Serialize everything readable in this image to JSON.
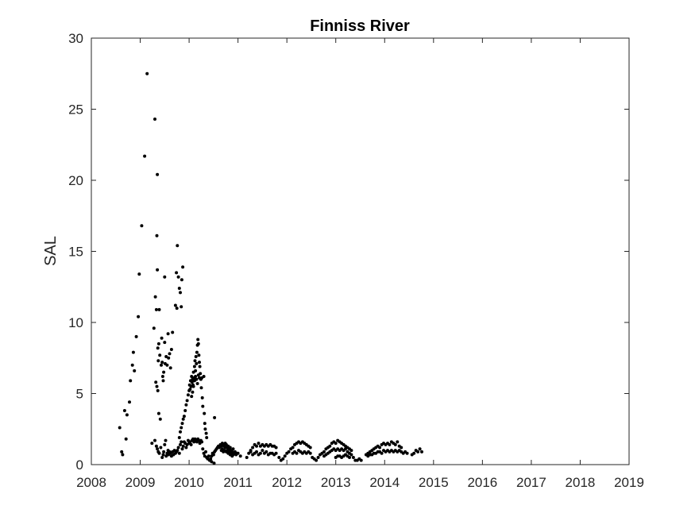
{
  "chart_data": {
    "type": "scatter",
    "title": "Finniss River",
    "xlabel": "",
    "ylabel": "SAL",
    "xlim": [
      2008,
      2019
    ],
    "ylim": [
      0,
      30
    ],
    "xticks": [
      "2008",
      "2009",
      "2010",
      "2011",
      "2012",
      "2013",
      "2014",
      "2015",
      "2016",
      "2017",
      "2018",
      "2019"
    ],
    "yticks": [
      "0",
      "5",
      "10",
      "15",
      "20",
      "25",
      "30"
    ],
    "grid": false,
    "legend": "none",
    "marker_color": "#000000",
    "points": [
      [
        2008.58,
        2.6
      ],
      [
        2008.62,
        0.9
      ],
      [
        2008.64,
        0.7
      ],
      [
        2008.68,
        3.8
      ],
      [
        2008.71,
        1.8
      ],
      [
        2008.73,
        3.5
      ],
      [
        2008.78,
        4.4
      ],
      [
        2008.8,
        5.9
      ],
      [
        2008.84,
        7.0
      ],
      [
        2008.86,
        7.9
      ],
      [
        2008.88,
        6.6
      ],
      [
        2008.92,
        9.0
      ],
      [
        2008.96,
        10.4
      ],
      [
        2008.98,
        13.4
      ],
      [
        2009.03,
        16.8
      ],
      [
        2009.09,
        21.7
      ],
      [
        2009.14,
        27.5
      ],
      [
        2009.24,
        1.5
      ],
      [
        2009.28,
        9.6
      ],
      [
        2009.3,
        24.3
      ],
      [
        2009.31,
        11.8
      ],
      [
        2009.33,
        10.9
      ],
      [
        2009.34,
        16.1
      ],
      [
        2009.35,
        20.4
      ],
      [
        2009.35,
        13.7
      ],
      [
        2009.36,
        8.2
      ],
      [
        2009.37,
        7.3
      ],
      [
        2009.38,
        8.5
      ],
      [
        2009.39,
        10.9
      ],
      [
        2009.4,
        7.7
      ],
      [
        2009.32,
        5.8
      ],
      [
        2009.34,
        5.5
      ],
      [
        2009.36,
        5.2
      ],
      [
        2009.38,
        3.6
      ],
      [
        2009.41,
        3.2
      ],
      [
        2009.3,
        1.7
      ],
      [
        2009.33,
        1.3
      ],
      [
        2009.35,
        1.1
      ],
      [
        2009.37,
        0.9
      ],
      [
        2009.39,
        0.8
      ],
      [
        2009.42,
        1.2
      ],
      [
        2009.43,
        7.0
      ],
      [
        2009.44,
        8.9
      ],
      [
        2009.45,
        7.2
      ],
      [
        2009.46,
        6.2
      ],
      [
        2009.47,
        5.9
      ],
      [
        2009.48,
        6.5
      ],
      [
        2009.5,
        13.2
      ],
      [
        2009.5,
        8.6
      ],
      [
        2009.51,
        7.1
      ],
      [
        2009.53,
        7.6
      ],
      [
        2009.55,
        7.0
      ],
      [
        2009.57,
        9.2
      ],
      [
        2009.58,
        7.5
      ],
      [
        2009.6,
        7.8
      ],
      [
        2009.62,
        6.8
      ],
      [
        2009.64,
        8.1
      ],
      [
        2009.66,
        9.3
      ],
      [
        2009.45,
        0.5
      ],
      [
        2009.47,
        0.7
      ],
      [
        2009.48,
        0.9
      ],
      [
        2009.5,
        1.4
      ],
      [
        2009.52,
        1.7
      ],
      [
        2009.53,
        0.6
      ],
      [
        2009.55,
        0.8
      ],
      [
        2009.57,
        1.0
      ],
      [
        2009.58,
        0.7
      ],
      [
        2009.6,
        0.9
      ],
      [
        2009.62,
        0.8
      ],
      [
        2009.64,
        0.6
      ],
      [
        2009.66,
        0.9
      ],
      [
        2009.68,
        0.7
      ],
      [
        2009.7,
        1.0
      ],
      [
        2009.72,
        0.8
      ],
      [
        2009.72,
        11.2
      ],
      [
        2009.74,
        13.5
      ],
      [
        2009.75,
        11.0
      ],
      [
        2009.76,
        15.4
      ],
      [
        2009.78,
        13.2
      ],
      [
        2009.8,
        12.4
      ],
      [
        2009.82,
        12.1
      ],
      [
        2009.84,
        11.1
      ],
      [
        2009.85,
        13.0
      ],
      [
        2009.87,
        13.9
      ],
      [
        2009.74,
        0.9
      ],
      [
        2009.76,
        1.0
      ],
      [
        2009.78,
        1.2
      ],
      [
        2009.8,
        0.8
      ],
      [
        2009.82,
        1.4
      ],
      [
        2009.84,
        1.6
      ],
      [
        2009.86,
        1.1
      ],
      [
        2009.88,
        1.3
      ],
      [
        2009.9,
        1.6
      ],
      [
        2009.92,
        1.5
      ],
      [
        2009.94,
        1.2
      ],
      [
        2009.96,
        1.4
      ],
      [
        2009.98,
        1.7
      ],
      [
        2010.0,
        1.5
      ],
      [
        2010.02,
        1.6
      ],
      [
        2010.04,
        1.4
      ],
      [
        2010.06,
        1.7
      ],
      [
        2010.08,
        1.8
      ],
      [
        2010.1,
        1.6
      ],
      [
        2010.12,
        1.8
      ],
      [
        2010.14,
        1.7
      ],
      [
        2010.16,
        1.6
      ],
      [
        2010.18,
        1.8
      ],
      [
        2010.2,
        1.7
      ],
      [
        2010.22,
        1.5
      ],
      [
        2010.24,
        1.7
      ],
      [
        2010.26,
        1.6
      ],
      [
        2009.8,
        1.9
      ],
      [
        2009.82,
        2.3
      ],
      [
        2009.84,
        2.6
      ],
      [
        2009.86,
        2.9
      ],
      [
        2009.88,
        3.2
      ],
      [
        2009.9,
        3.4
      ],
      [
        2009.92,
        3.8
      ],
      [
        2009.94,
        4.2
      ],
      [
        2009.96,
        4.5
      ],
      [
        2009.98,
        4.9
      ],
      [
        2010.0,
        5.2
      ],
      [
        2010.01,
        5.6
      ],
      [
        2010.02,
        5.3
      ],
      [
        2010.03,
        5.9
      ],
      [
        2010.04,
        5.5
      ],
      [
        2010.05,
        6.2
      ],
      [
        2010.06,
        5.8
      ],
      [
        2010.07,
        6.0
      ],
      [
        2010.08,
        5.6
      ],
      [
        2010.09,
        6.5
      ],
      [
        2010.1,
        6.1
      ],
      [
        2010.11,
        6.9
      ],
      [
        2010.12,
        7.3
      ],
      [
        2010.13,
        6.6
      ],
      [
        2010.14,
        7.6
      ],
      [
        2010.15,
        7.1
      ],
      [
        2010.16,
        7.9
      ],
      [
        2010.17,
        8.4
      ],
      [
        2010.18,
        8.8
      ],
      [
        2010.19,
        8.5
      ],
      [
        2010.2,
        7.7
      ],
      [
        2010.21,
        7.2
      ],
      [
        2010.22,
        6.9
      ],
      [
        2010.23,
        6.4
      ],
      [
        2010.24,
        6.0
      ],
      [
        2010.25,
        5.4
      ],
      [
        2010.26,
        6.1
      ],
      [
        2010.27,
        4.7
      ],
      [
        2010.28,
        4.1
      ],
      [
        2010.3,
        6.2
      ],
      [
        2010.31,
        3.6
      ],
      [
        2010.32,
        2.9
      ],
      [
        2010.33,
        2.5
      ],
      [
        2010.35,
        2.2
      ],
      [
        2010.36,
        1.9
      ],
      [
        2010.05,
        4.8
      ],
      [
        2010.07,
        5.1
      ],
      [
        2010.09,
        5.5
      ],
      [
        2010.11,
        5.9
      ],
      [
        2010.13,
        6.2
      ],
      [
        2010.15,
        6.0
      ],
      [
        2010.17,
        5.7
      ],
      [
        2010.19,
        6.3
      ],
      [
        2010.21,
        6.1
      ],
      [
        2010.28,
        1.1
      ],
      [
        2010.3,
        0.8
      ],
      [
        2010.32,
        0.6
      ],
      [
        2010.34,
        0.9
      ],
      [
        2010.36,
        0.5
      ],
      [
        2010.38,
        0.4
      ],
      [
        2010.4,
        0.6
      ],
      [
        2010.42,
        0.3
      ],
      [
        2010.44,
        0.4
      ],
      [
        2010.46,
        0.6
      ],
      [
        2010.48,
        0.8
      ],
      [
        2010.5,
        0.7
      ],
      [
        2010.52,
        0.9
      ],
      [
        2010.54,
        1.0
      ],
      [
        2010.56,
        1.1
      ],
      [
        2010.58,
        1.2
      ],
      [
        2010.6,
        1.3
      ],
      [
        2010.62,
        1.2
      ],
      [
        2010.64,
        1.4
      ],
      [
        2010.66,
        1.3
      ],
      [
        2010.68,
        1.5
      ],
      [
        2010.7,
        1.4
      ],
      [
        2010.72,
        1.3
      ],
      [
        2010.74,
        1.5
      ],
      [
        2010.76,
        1.4
      ],
      [
        2010.78,
        1.2
      ],
      [
        2010.8,
        1.3
      ],
      [
        2010.82,
        1.1
      ],
      [
        2010.84,
        1.2
      ],
      [
        2010.86,
        1.0
      ],
      [
        2010.88,
        0.9
      ],
      [
        2010.9,
        1.1
      ],
      [
        2010.92,
        0.8
      ],
      [
        2010.94,
        0.9
      ],
      [
        2010.96,
        0.7
      ],
      [
        2010.98,
        0.8
      ],
      [
        2010.46,
        0.2
      ],
      [
        2010.51,
        0.1
      ],
      [
        2010.52,
        3.3
      ],
      [
        2010.66,
        1.0
      ],
      [
        2010.68,
        1.1
      ],
      [
        2010.7,
        0.9
      ],
      [
        2010.72,
        1.0
      ],
      [
        2010.74,
        1.2
      ],
      [
        2010.76,
        0.9
      ],
      [
        2010.78,
        1.0
      ],
      [
        2010.8,
        0.8
      ],
      [
        2010.82,
        0.9
      ],
      [
        2010.84,
        0.7
      ],
      [
        2010.86,
        0.8
      ],
      [
        2010.88,
        0.6
      ],
      [
        2010.9,
        0.7
      ],
      [
        2011.0,
        0.8
      ],
      [
        2011.05,
        0.6
      ],
      [
        2011.18,
        0.5
      ],
      [
        2011.22,
        0.8
      ],
      [
        2011.26,
        1.0
      ],
      [
        2011.3,
        1.2
      ],
      [
        2011.34,
        1.4
      ],
      [
        2011.38,
        1.3
      ],
      [
        2011.42,
        1.5
      ],
      [
        2011.46,
        1.3
      ],
      [
        2011.5,
        1.4
      ],
      [
        2011.54,
        1.3
      ],
      [
        2011.58,
        1.4
      ],
      [
        2011.62,
        1.3
      ],
      [
        2011.66,
        1.4
      ],
      [
        2011.7,
        1.3
      ],
      [
        2011.74,
        1.3
      ],
      [
        2011.78,
        1.2
      ],
      [
        2011.26,
        0.9
      ],
      [
        2011.3,
        0.7
      ],
      [
        2011.34,
        0.8
      ],
      [
        2011.38,
        0.9
      ],
      [
        2011.42,
        0.7
      ],
      [
        2011.46,
        0.8
      ],
      [
        2011.5,
        1.0
      ],
      [
        2011.54,
        0.8
      ],
      [
        2011.58,
        0.9
      ],
      [
        2011.62,
        0.7
      ],
      [
        2011.66,
        0.8
      ],
      [
        2011.7,
        0.8
      ],
      [
        2011.74,
        0.7
      ],
      [
        2011.78,
        0.8
      ],
      [
        2011.84,
        0.5
      ],
      [
        2011.88,
        0.3
      ],
      [
        2011.92,
        0.4
      ],
      [
        2011.96,
        0.6
      ],
      [
        2012.0,
        0.8
      ],
      [
        2012.04,
        0.9
      ],
      [
        2012.08,
        1.1
      ],
      [
        2012.12,
        1.2
      ],
      [
        2012.16,
        1.4
      ],
      [
        2012.2,
        1.5
      ],
      [
        2012.24,
        1.6
      ],
      [
        2012.28,
        1.5
      ],
      [
        2012.32,
        1.6
      ],
      [
        2012.36,
        1.5
      ],
      [
        2012.4,
        1.4
      ],
      [
        2012.44,
        1.3
      ],
      [
        2012.48,
        1.2
      ],
      [
        2012.12,
        0.8
      ],
      [
        2012.16,
        0.9
      ],
      [
        2012.2,
        0.8
      ],
      [
        2012.24,
        1.0
      ],
      [
        2012.28,
        0.9
      ],
      [
        2012.32,
        0.8
      ],
      [
        2012.36,
        0.9
      ],
      [
        2012.4,
        0.8
      ],
      [
        2012.44,
        0.9
      ],
      [
        2012.48,
        0.8
      ],
      [
        2012.52,
        0.5
      ],
      [
        2012.56,
        0.4
      ],
      [
        2012.6,
        0.3
      ],
      [
        2012.64,
        0.5
      ],
      [
        2012.68,
        0.7
      ],
      [
        2012.72,
        0.8
      ],
      [
        2012.76,
        0.9
      ],
      [
        2012.8,
        1.1
      ],
      [
        2012.84,
        1.2
      ],
      [
        2012.88,
        1.3
      ],
      [
        2012.92,
        1.5
      ],
      [
        2012.96,
        1.6
      ],
      [
        2013.0,
        1.5
      ],
      [
        2013.04,
        1.7
      ],
      [
        2013.08,
        1.6
      ],
      [
        2013.12,
        1.5
      ],
      [
        2013.16,
        1.4
      ],
      [
        2013.2,
        1.3
      ],
      [
        2013.24,
        1.2
      ],
      [
        2013.28,
        1.1
      ],
      [
        2013.32,
        1.0
      ],
      [
        2012.76,
        0.6
      ],
      [
        2012.8,
        0.7
      ],
      [
        2012.84,
        0.8
      ],
      [
        2012.88,
        0.9
      ],
      [
        2012.92,
        1.0
      ],
      [
        2012.96,
        1.1
      ],
      [
        2013.0,
        1.0
      ],
      [
        2013.04,
        1.1
      ],
      [
        2013.08,
        1.0
      ],
      [
        2013.12,
        1.1
      ],
      [
        2013.16,
        1.0
      ],
      [
        2013.2,
        1.1
      ],
      [
        2013.24,
        0.9
      ],
      [
        2013.28,
        0.8
      ],
      [
        2013.32,
        0.7
      ],
      [
        2013.0,
        0.5
      ],
      [
        2013.04,
        0.6
      ],
      [
        2013.08,
        0.6
      ],
      [
        2013.12,
        0.5
      ],
      [
        2013.16,
        0.6
      ],
      [
        2013.2,
        0.7
      ],
      [
        2013.24,
        0.6
      ],
      [
        2013.28,
        0.5
      ],
      [
        2013.36,
        0.5
      ],
      [
        2013.4,
        0.3
      ],
      [
        2013.44,
        0.3
      ],
      [
        2013.48,
        0.4
      ],
      [
        2013.52,
        0.3
      ],
      [
        2013.62,
        0.7
      ],
      [
        2013.66,
        0.8
      ],
      [
        2013.7,
        0.9
      ],
      [
        2013.74,
        1.0
      ],
      [
        2013.78,
        1.1
      ],
      [
        2013.82,
        1.2
      ],
      [
        2013.86,
        1.3
      ],
      [
        2013.9,
        1.2
      ],
      [
        2013.94,
        1.4
      ],
      [
        2013.98,
        1.5
      ],
      [
        2014.02,
        1.4
      ],
      [
        2014.06,
        1.5
      ],
      [
        2014.1,
        1.4
      ],
      [
        2014.14,
        1.6
      ],
      [
        2014.18,
        1.5
      ],
      [
        2014.22,
        1.4
      ],
      [
        2014.26,
        1.6
      ],
      [
        2014.3,
        1.3
      ],
      [
        2014.34,
        1.2
      ],
      [
        2013.66,
        0.6
      ],
      [
        2013.7,
        0.7
      ],
      [
        2013.74,
        0.7
      ],
      [
        2013.78,
        0.8
      ],
      [
        2013.82,
        0.8
      ],
      [
        2013.86,
        0.9
      ],
      [
        2013.9,
        0.9
      ],
      [
        2013.94,
        0.8
      ],
      [
        2013.98,
        1.0
      ],
      [
        2014.02,
        0.9
      ],
      [
        2014.06,
        1.0
      ],
      [
        2014.1,
        0.9
      ],
      [
        2014.14,
        1.0
      ],
      [
        2014.18,
        0.9
      ],
      [
        2014.22,
        1.0
      ],
      [
        2014.26,
        0.9
      ],
      [
        2014.3,
        1.0
      ],
      [
        2014.34,
        0.9
      ],
      [
        2014.38,
        0.8
      ],
      [
        2014.42,
        0.9
      ],
      [
        2014.46,
        0.8
      ],
      [
        2014.56,
        0.7
      ],
      [
        2014.6,
        0.8
      ],
      [
        2014.64,
        1.0
      ],
      [
        2014.68,
        0.9
      ],
      [
        2014.72,
        1.1
      ],
      [
        2014.76,
        0.9
      ]
    ]
  }
}
